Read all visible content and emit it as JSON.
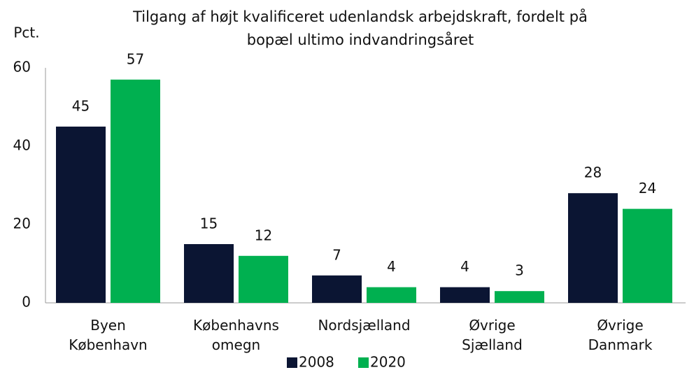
{
  "chart_data": {
    "type": "bar",
    "title": [
      "Tilgang af højt kvalificeret udenlandsk arbejdskraft, fordelt på",
      "bopæl ultimo indvandringsåret"
    ],
    "y_label": "Pct.",
    "categories": [
      "Byen København",
      "Københavns omegn",
      "Nordsjælland",
      "Øvrige Sjælland",
      "Øvrige Danmark"
    ],
    "series": [
      {
        "name": "2008",
        "color": "#0b1533",
        "values": [
          45,
          15,
          7,
          4,
          28
        ]
      },
      {
        "name": "2020",
        "color": "#00b050",
        "values": [
          57,
          12,
          4,
          3,
          24
        ]
      }
    ],
    "ylim": [
      0,
      60
    ],
    "yticks": [
      0,
      20,
      40,
      60
    ],
    "grid": false,
    "legend": "bottom"
  }
}
